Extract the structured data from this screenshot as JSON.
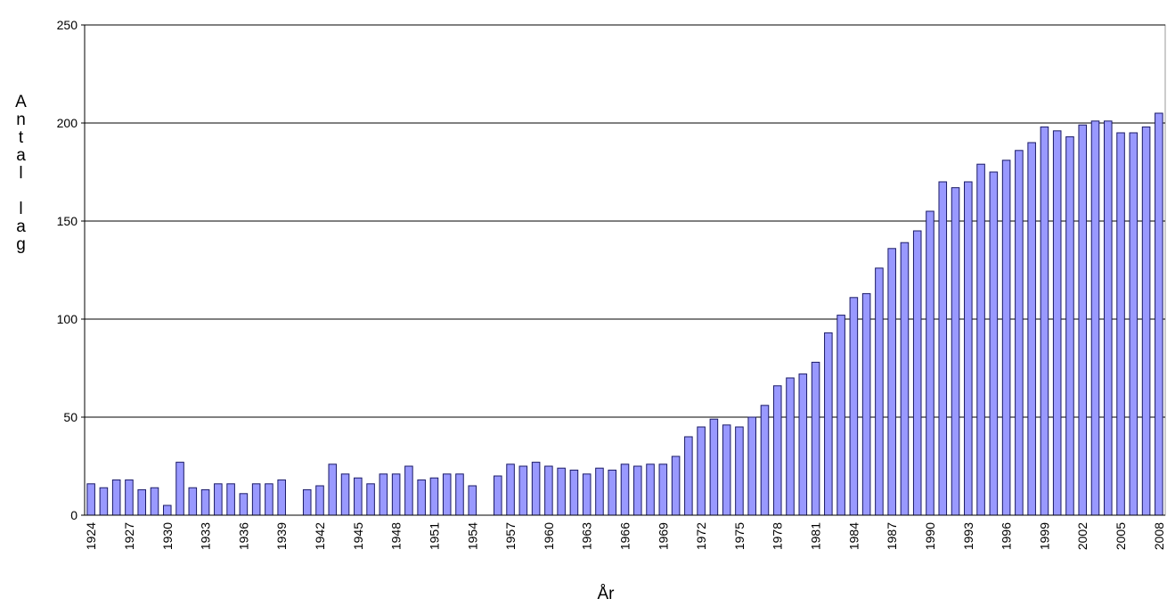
{
  "chart_data": {
    "type": "bar",
    "x_label": "År",
    "y_label": "Antal lag",
    "categories": [
      "1924",
      null,
      null,
      "1927",
      null,
      null,
      "1930",
      null,
      null,
      "1933",
      null,
      null,
      "1936",
      null,
      null,
      "1939",
      null,
      null,
      "1942",
      null,
      null,
      "1945",
      null,
      null,
      "1948",
      null,
      null,
      "1951",
      null,
      null,
      "1954",
      null,
      null,
      "1957",
      null,
      null,
      "1960",
      null,
      null,
      "1963",
      null,
      null,
      "1966",
      null,
      null,
      "1969",
      null,
      null,
      "1972",
      null,
      null,
      "1975",
      null,
      null,
      "1978",
      null,
      null,
      "1981",
      null,
      null,
      "1984",
      null,
      null,
      "1987",
      null,
      null,
      "1990",
      null,
      null,
      "1993",
      null,
      null,
      "1996",
      null,
      null,
      "1999",
      null,
      null,
      "2002",
      null,
      null,
      "2005",
      null,
      null,
      "2008"
    ],
    "values": [
      16,
      14,
      18,
      18,
      13,
      14,
      5,
      27,
      14,
      13,
      16,
      16,
      11,
      16,
      16,
      18,
      0,
      13,
      15,
      26,
      21,
      19,
      16,
      21,
      21,
      25,
      18,
      19,
      21,
      21,
      15,
      0,
      20,
      26,
      25,
      27,
      25,
      24,
      23,
      21,
      24,
      23,
      26,
      25,
      26,
      26,
      30,
      40,
      45,
      49,
      46,
      45,
      50,
      56,
      66,
      70,
      72,
      78,
      93,
      102,
      111,
      113,
      126,
      136,
      139,
      145,
      155,
      170,
      167,
      170,
      179,
      175,
      181,
      186,
      190,
      198,
      196,
      193,
      199,
      201,
      201,
      195,
      195,
      198,
      205
    ],
    "color": "#9999ff",
    "ylim": [
      0,
      250
    ],
    "yticks": [
      0,
      50,
      100,
      150,
      200,
      250
    ],
    "grid": true
  }
}
